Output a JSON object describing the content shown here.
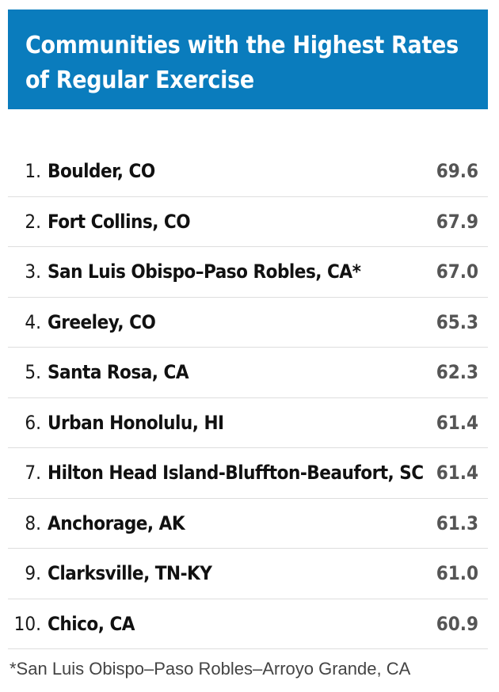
{
  "header": {
    "title_line1": "Communities with the Highest Rates",
    "title_line2": "of Regular Exercise"
  },
  "chart_data": {
    "type": "table",
    "title": "Communities with the Highest Rates of Regular Exercise",
    "rows": [
      {
        "rank": "1.",
        "community": "Boulder, CO",
        "value": "69.6"
      },
      {
        "rank": "2.",
        "community": "Fort Collins, CO",
        "value": "67.9"
      },
      {
        "rank": "3.",
        "community": "San Luis Obispo–Paso Robles, CA*",
        "value": "67.0"
      },
      {
        "rank": "4.",
        "community": "Greeley, CO",
        "value": "65.3"
      },
      {
        "rank": "5.",
        "community": "Santa Rosa, CA",
        "value": "62.3"
      },
      {
        "rank": "6.",
        "community": "Urban Honolulu, HI",
        "value": "61.4"
      },
      {
        "rank": "7.",
        "community": "Hilton Head Island-Bluffton-Beaufort, SC",
        "value": "61.4"
      },
      {
        "rank": "8.",
        "community": "Anchorage, AK",
        "value": "61.3"
      },
      {
        "rank": "9.",
        "community": "Clarksville, TN-KY",
        "value": "61.0"
      },
      {
        "rank": "10.",
        "community": "Chico, CA",
        "value": "60.9"
      }
    ],
    "footnote": "*San Luis Obispo–Paso Robles–Arroyo Grande, CA"
  },
  "colors": {
    "header_bg": "#0a7cbd",
    "header_text": "#ffffff",
    "divider": "#dedede"
  }
}
